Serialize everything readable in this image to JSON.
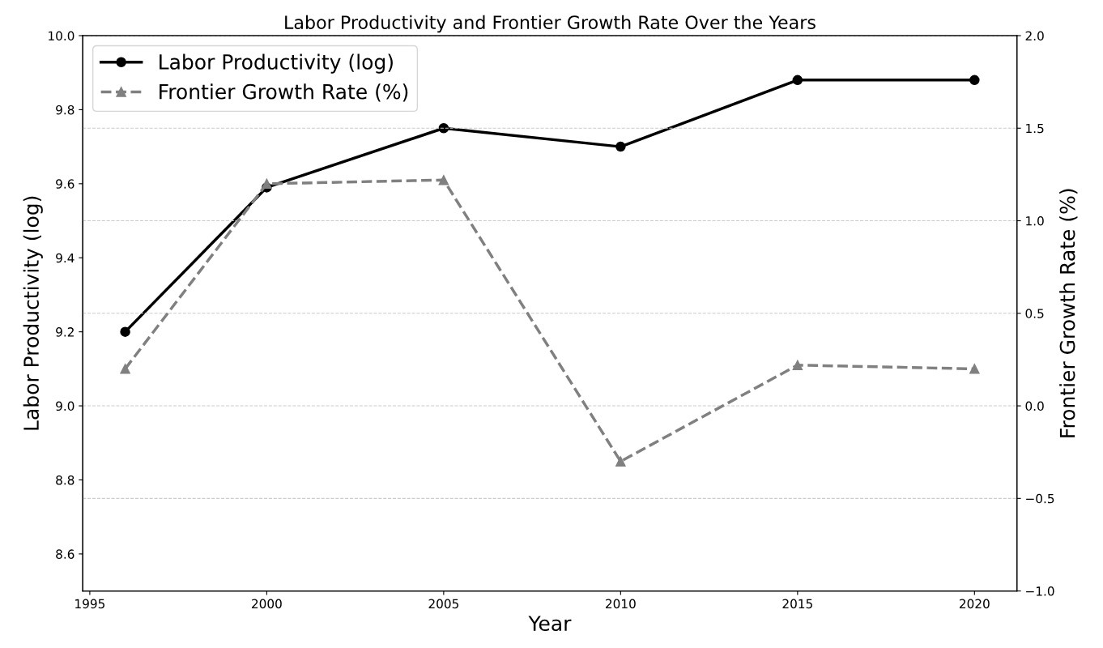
{
  "chart_data": {
    "type": "line",
    "title": "Labor Productivity and Frontier Growth Rate Over the Years",
    "xlabel": "Year",
    "ylabel": "Labor Productivity (log)",
    "y2label": "Frontier Growth Rate (%)",
    "x": [
      1996,
      2000,
      2005,
      2010,
      2015,
      2020
    ],
    "series": [
      {
        "name": "Labor Productivity (log)",
        "color": "#000000",
        "values": [
          9.2,
          9.59,
          9.75,
          9.7,
          9.88,
          9.88
        ],
        "marker": "circle",
        "line_style": "solid"
      },
      {
        "name": "Frontier Growth Rate (%)",
        "color": "#808080",
        "values": [
          0.2,
          1.2,
          1.22,
          -0.3,
          0.22,
          0.2
        ],
        "marker": "triangle",
        "line_style": "dashed",
        "axis": "y2"
      }
    ],
    "xlim": [
      1994.8,
      2021.2
    ],
    "xticks": [
      1995,
      2000,
      2005,
      2010,
      2015,
      2020
    ],
    "ylim": [
      8.5,
      10.0
    ],
    "yticks": [
      8.6,
      8.8,
      {
        "value": 9,
        "label": "9.0"
      },
      9.2,
      9.4,
      9.6,
      9.8,
      {
        "value": 10,
        "label": "10.0"
      }
    ],
    "y2lim": [
      -1.0,
      2.0
    ],
    "y2ticks": [
      {
        "value": -1.0,
        "label": "−1.0"
      },
      {
        "value": -0.5,
        "label": "−0.5"
      },
      {
        "value": 0,
        "label": "0.0"
      },
      0.5,
      {
        "value": 1,
        "label": "1.0"
      },
      1.5,
      {
        "value": 2,
        "label": "2.0"
      }
    ],
    "grid": "y2",
    "legend": "top left"
  }
}
